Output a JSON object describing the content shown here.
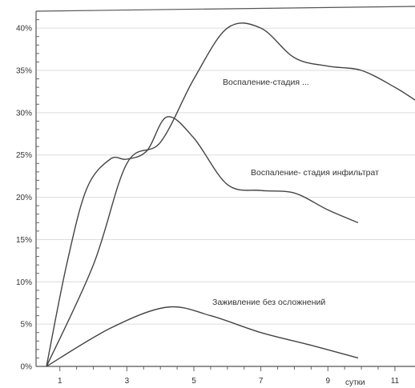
{
  "chart_data": {
    "type": "line",
    "xlabel": "сутки",
    "ylabel": "",
    "xlim": [
      0.6,
      11.6
    ],
    "ylim": [
      0,
      42
    ],
    "x_ticks": [
      1,
      3,
      5,
      7,
      9,
      11
    ],
    "y_ticks": [
      0,
      5,
      10,
      15,
      20,
      25,
      30,
      35,
      40
    ],
    "y_tick_labels": [
      "0%",
      "5%",
      "10%",
      "15%",
      "20%",
      "25%",
      "30%",
      "35%",
      "40%"
    ],
    "grid": "horizontal",
    "series": [
      {
        "name": "Воспаление-стадия ...",
        "x": [
          0.6,
          2.0,
          3.0,
          4.0,
          5.0,
          6.0,
          7.0,
          8.0,
          9.0,
          10.0,
          11.0,
          11.6
        ],
        "values": [
          0,
          12,
          24,
          26.5,
          34,
          40,
          40,
          36.5,
          35.5,
          35,
          33,
          31.5
        ]
      },
      {
        "name": "Воспаление- стадия инфильтрат",
        "x": [
          0.6,
          1.2,
          1.8,
          2.5,
          3.0,
          3.6,
          4.2,
          5.0,
          6.0,
          7.0,
          8.0,
          9.0,
          9.9
        ],
        "values": [
          0,
          12,
          21,
          24.5,
          24.5,
          25.5,
          29.5,
          27,
          21.5,
          20.8,
          20.5,
          18.5,
          17
        ]
      },
      {
        "name": "Заживление без осложнений",
        "x": [
          0.6,
          2.5,
          4.2,
          5.5,
          7.0,
          8.5,
          9.9
        ],
        "values": [
          0,
          4.5,
          7,
          6,
          4,
          2.5,
          1
        ]
      }
    ]
  }
}
